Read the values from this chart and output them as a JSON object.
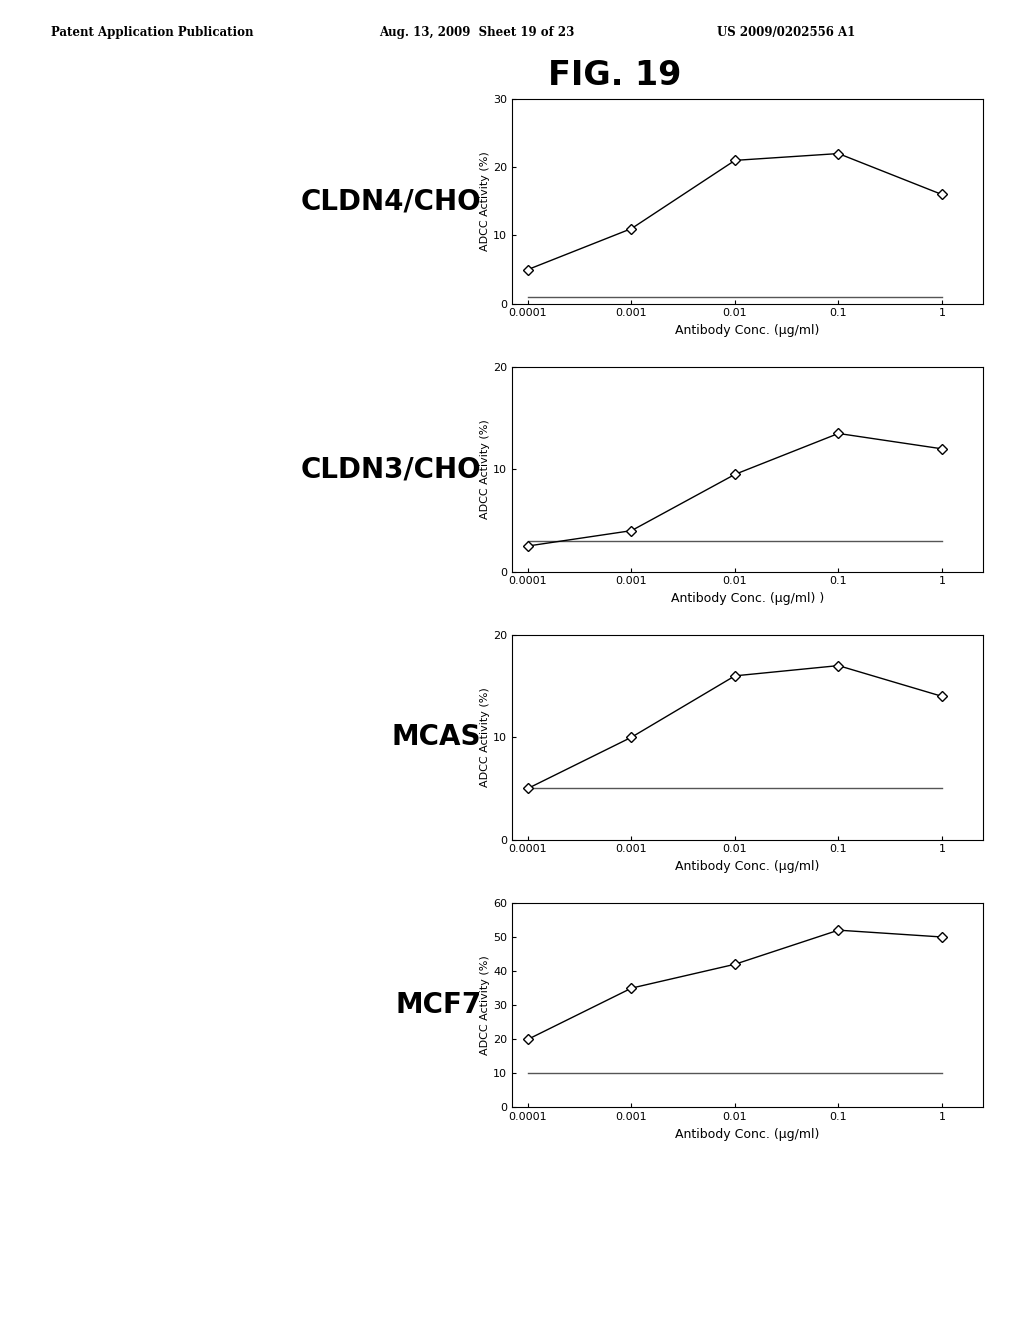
{
  "fig_title": "FIG. 19",
  "header_left": "Patent Application Publication",
  "header_center": "Aug. 13, 2009  Sheet 19 of 23",
  "header_right": "US 2009/0202556 A1",
  "subplots": [
    {
      "label": "CLDN4/CHO",
      "x": [
        0.0001,
        0.001,
        0.01,
        0.1,
        1
      ],
      "y_active": [
        5,
        11,
        21,
        22,
        16
      ],
      "y_control": [
        1,
        1,
        1,
        1,
        1
      ],
      "ylim": [
        0,
        30
      ],
      "yticks": [
        0,
        10,
        20,
        30
      ],
      "xlabel": "Antibody Conc. (μg/ml)",
      "ylabel": "ADCC Activity (%)"
    },
    {
      "label": "CLDN3/CHO",
      "x": [
        0.0001,
        0.001,
        0.01,
        0.1,
        1
      ],
      "y_active": [
        2.5,
        4,
        9.5,
        13.5,
        12
      ],
      "y_control": [
        3,
        3,
        3,
        3,
        3
      ],
      "ylim": [
        0,
        20
      ],
      "yticks": [
        0,
        10,
        20
      ],
      "xlabel": "Antibody Conc. (μg/ml) )",
      "ylabel": "ADCC Activity (%)"
    },
    {
      "label": "MCAS",
      "x": [
        0.0001,
        0.001,
        0.01,
        0.1,
        1
      ],
      "y_active": [
        5,
        10,
        16,
        17,
        14
      ],
      "y_control": [
        5,
        5,
        5,
        5,
        5
      ],
      "ylim": [
        0,
        20
      ],
      "yticks": [
        0,
        10,
        20
      ],
      "xlabel": "Antibody Conc. (μg/ml)",
      "ylabel": "ADCC Activity (%)"
    },
    {
      "label": "MCF7",
      "x": [
        0.0001,
        0.001,
        0.01,
        0.1,
        1
      ],
      "y_active": [
        20,
        35,
        42,
        52,
        50
      ],
      "y_control": [
        10,
        10,
        10,
        10,
        10
      ],
      "ylim": [
        0,
        60
      ],
      "yticks": [
        0,
        10,
        20,
        30,
        40,
        50,
        60
      ],
      "xlabel": "Antibody Conc. (μg/ml)",
      "ylabel": "ADCC Activity (%)"
    }
  ],
  "background_color": "#ffffff",
  "line_color": "#000000",
  "control_line_color": "#555555"
}
